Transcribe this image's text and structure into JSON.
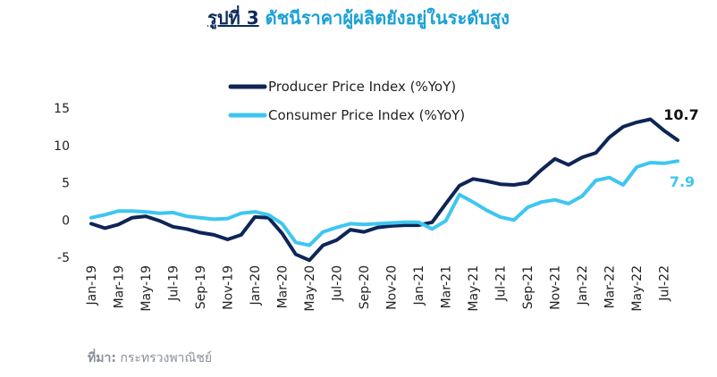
{
  "title": {
    "prefix": "รูปที่ 3",
    "text": "ดัชนีราคาผู้ผลิตยังอยู่ในระดับสูง"
  },
  "source": {
    "label": "ที่มา:",
    "text": " กระทรวงพาณิชย์"
  },
  "colors": {
    "ppi": "#0d2557",
    "cpi": "#3ec6f0",
    "text": "#222222"
  },
  "chart_data": {
    "type": "line",
    "title": "",
    "xlabel": "",
    "ylabel": "",
    "ylim": [
      -5,
      15
    ],
    "yticks": [
      15,
      10,
      5,
      0,
      -5
    ],
    "grid": false,
    "legend": "top-center",
    "x": [
      "Jan-19",
      "Feb-19",
      "Mar-19",
      "Apr-19",
      "May-19",
      "Jun-19",
      "Jul-19",
      "Aug-19",
      "Sep-19",
      "Oct-19",
      "Nov-19",
      "Dec-19",
      "Jan-20",
      "Feb-20",
      "Mar-20",
      "Apr-20",
      "May-20",
      "Jun-20",
      "Jul-20",
      "Aug-20",
      "Sep-20",
      "Oct-20",
      "Nov-20",
      "Dec-20",
      "Jan-21",
      "Feb-21",
      "Mar-21",
      "Apr-21",
      "May-21",
      "Jun-21",
      "Jul-21",
      "Aug-21",
      "Sep-21",
      "Oct-21",
      "Nov-21",
      "Dec-21",
      "Jan-22",
      "Feb-22",
      "Mar-22",
      "Apr-22",
      "May-22",
      "Jun-22",
      "Jul-22",
      "Aug-22"
    ],
    "xtick_labels": [
      "Jan-19",
      "Mar-19",
      "May-19",
      "Jul-19",
      "Sep-19",
      "Nov-19",
      "Jan-20",
      "Mar-20",
      "May-20",
      "Jul-20",
      "Sep-20",
      "Nov-20",
      "Jan-21",
      "Mar-21",
      "May-21",
      "Jul-21",
      "Sep-21",
      "Nov-21",
      "Jan-22",
      "Mar-22",
      "May-22",
      "Jul-22"
    ],
    "series": [
      {
        "name": "Producer Price Index (%YoY)",
        "values": [
          -0.5,
          -1.1,
          -0.6,
          0.3,
          0.5,
          -0.1,
          -0.9,
          -1.2,
          -1.7,
          -2.0,
          -2.6,
          -2.0,
          0.4,
          0.3,
          -1.8,
          -4.6,
          -5.4,
          -3.4,
          -2.7,
          -1.3,
          -1.6,
          -1.0,
          -0.8,
          -0.7,
          -0.7,
          -0.3,
          2.2,
          4.6,
          5.5,
          5.2,
          4.8,
          4.7,
          5.0,
          6.7,
          8.2,
          7.4,
          8.4,
          9.0,
          11.1,
          12.5,
          13.1,
          13.5,
          12.0,
          10.7
        ],
        "end_label": "10.7"
      },
      {
        "name": "Consumer Price Index (%YoY)",
        "values": [
          0.3,
          0.7,
          1.2,
          1.2,
          1.1,
          0.9,
          1.0,
          0.5,
          0.3,
          0.1,
          0.2,
          0.9,
          1.1,
          0.7,
          -0.5,
          -3.0,
          -3.4,
          -1.6,
          -1.0,
          -0.5,
          -0.6,
          -0.5,
          -0.4,
          -0.3,
          -0.3,
          -1.2,
          -0.1,
          3.4,
          2.4,
          1.3,
          0.4,
          0.0,
          1.7,
          2.4,
          2.7,
          2.2,
          3.2,
          5.3,
          5.7,
          4.7,
          7.1,
          7.7,
          7.6,
          7.9
        ],
        "end_label": "7.9"
      }
    ]
  }
}
